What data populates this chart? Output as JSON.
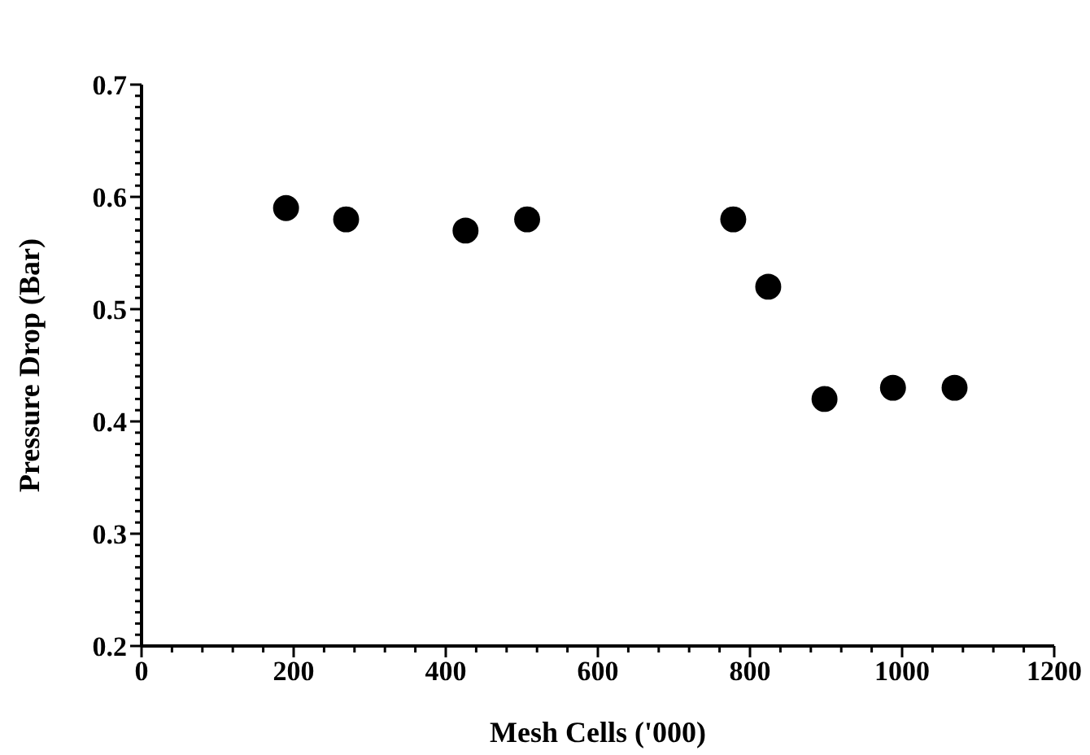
{
  "chart_data": {
    "type": "scatter",
    "xlabel": "Mesh Cells ('000)",
    "ylabel": "Pressure Drop (Bar)",
    "marker": "circle",
    "x": [
      190,
      269,
      426,
      507,
      778,
      824,
      898,
      988,
      1069
    ],
    "series": [
      {
        "color": "#000000",
        "values": [
          0.59,
          0.58,
          0.57,
          0.58,
          0.58,
          0.52,
          0.42,
          0.43,
          0.43
        ]
      }
    ],
    "xlim": [
      0,
      1200
    ],
    "xticks": [
      0,
      {
        "value": 40,
        "label": null
      },
      {
        "value": 80,
        "label": null
      },
      {
        "value": 120,
        "label": null
      },
      {
        "value": 160,
        "label": null
      },
      200,
      {
        "value": 240,
        "label": null
      },
      {
        "value": 280,
        "label": null
      },
      {
        "value": 320,
        "label": null
      },
      {
        "value": 360,
        "label": null
      },
      400,
      {
        "value": 440,
        "label": null
      },
      {
        "value": 480,
        "label": null
      },
      {
        "value": 520,
        "label": null
      },
      {
        "value": 560,
        "label": null
      },
      600,
      {
        "value": 640,
        "label": null
      },
      {
        "value": 680,
        "label": null
      },
      {
        "value": 720,
        "label": null
      },
      {
        "value": 760,
        "label": null
      },
      800,
      {
        "value": 840,
        "label": null
      },
      {
        "value": 880,
        "label": null
      },
      {
        "value": 920,
        "label": null
      },
      {
        "value": 960,
        "label": null
      },
      1000,
      {
        "value": 1040,
        "label": null
      },
      {
        "value": 1080,
        "label": null
      },
      {
        "value": 1120,
        "label": null
      },
      {
        "value": 1160,
        "label": null
      },
      1200
    ],
    "ylim": [
      0.2,
      0.7
    ],
    "yticks": [
      0.2,
      {
        "value": 0.21,
        "label": null
      },
      {
        "value": 0.22,
        "label": null
      },
      {
        "value": 0.23,
        "label": null
      },
      {
        "value": 0.24,
        "label": null
      },
      {
        "value": 0.25,
        "label": null
      },
      {
        "value": 0.26,
        "label": null
      },
      {
        "value": 0.27,
        "label": null
      },
      {
        "value": 0.28,
        "label": null
      },
      {
        "value": 0.29,
        "label": null
      },
      0.3,
      {
        "value": 0.31,
        "label": null
      },
      {
        "value": 0.32,
        "label": null
      },
      {
        "value": 0.33,
        "label": null
      },
      {
        "value": 0.34,
        "label": null
      },
      {
        "value": 0.35,
        "label": null
      },
      {
        "value": 0.36,
        "label": null
      },
      {
        "value": 0.37,
        "label": null
      },
      {
        "value": 0.38,
        "label": null
      },
      {
        "value": 0.39,
        "label": null
      },
      0.4,
      {
        "value": 0.41,
        "label": null
      },
      {
        "value": 0.42,
        "label": null
      },
      {
        "value": 0.43,
        "label": null
      },
      {
        "value": 0.44,
        "label": null
      },
      {
        "value": 0.45,
        "label": null
      },
      {
        "value": 0.46,
        "label": null
      },
      {
        "value": 0.47,
        "label": null
      },
      {
        "value": 0.48,
        "label": null
      },
      {
        "value": 0.49,
        "label": null
      },
      0.5,
      {
        "value": 0.51,
        "label": null
      },
      {
        "value": 0.52,
        "label": null
      },
      {
        "value": 0.53,
        "label": null
      },
      {
        "value": 0.54,
        "label": null
      },
      {
        "value": 0.55,
        "label": null
      },
      {
        "value": 0.56,
        "label": null
      },
      {
        "value": 0.57,
        "label": null
      },
      {
        "value": 0.58,
        "label": null
      },
      {
        "value": 0.59,
        "label": null
      },
      0.6,
      {
        "value": 0.61,
        "label": null
      },
      {
        "value": 0.62,
        "label": null
      },
      {
        "value": 0.63,
        "label": null
      },
      {
        "value": 0.64,
        "label": null
      },
      {
        "value": 0.65,
        "label": null
      },
      {
        "value": 0.66,
        "label": null
      },
      {
        "value": 0.67,
        "label": null
      },
      {
        "value": 0.68,
        "label": null
      },
      {
        "value": 0.69,
        "label": null
      },
      0.7
    ]
  }
}
